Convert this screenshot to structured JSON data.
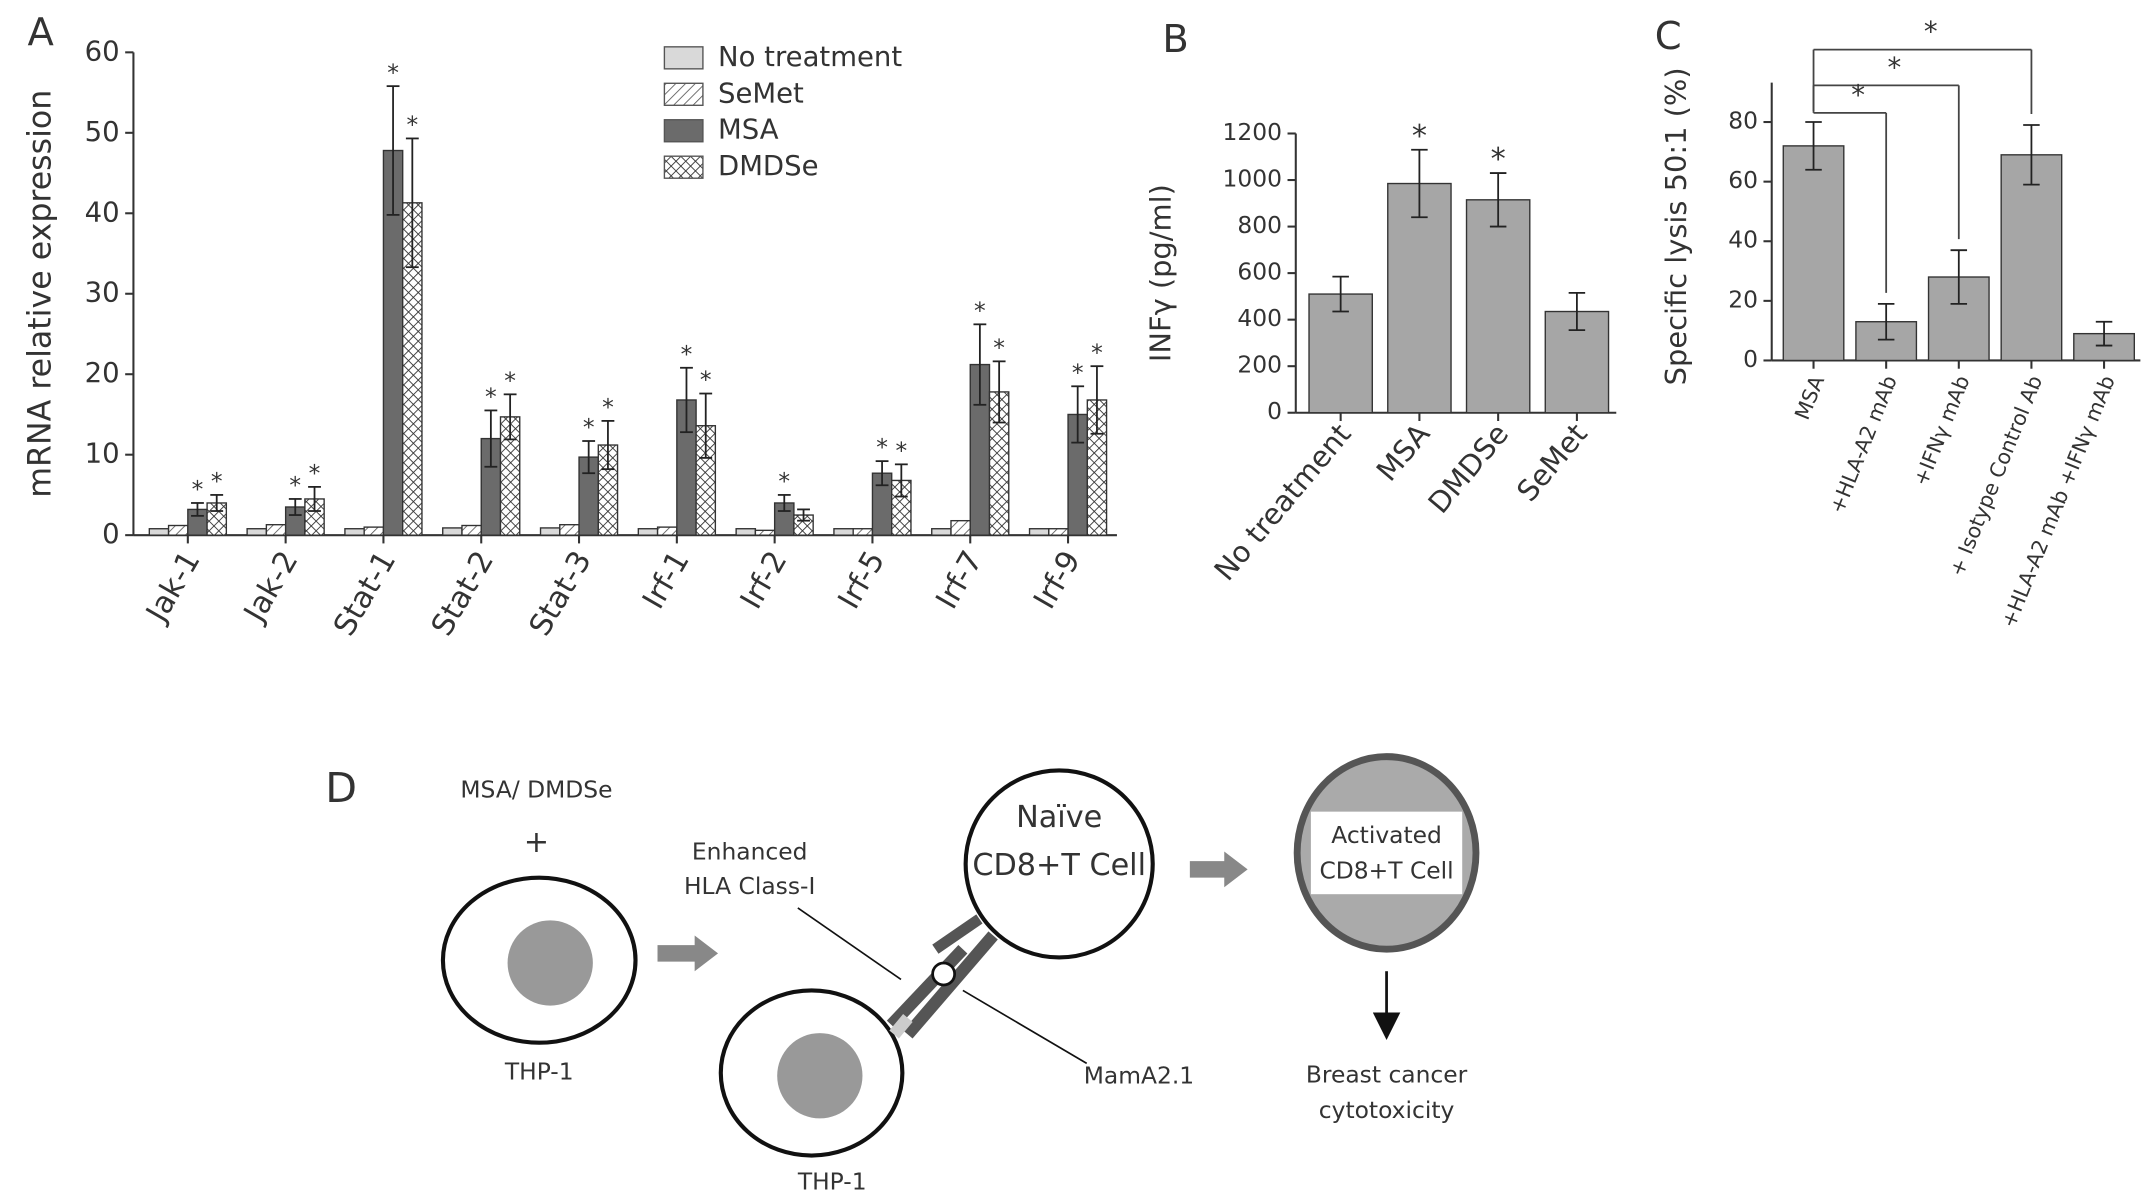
{
  "chart_data": [
    {
      "type": "bar",
      "panel": "A",
      "ylabel": "mRNA relative expression",
      "categories": [
        "Jak-1",
        "Jak-2",
        "Stat-1",
        "Stat-2",
        "Stat-3",
        "Irf-1",
        "Irf-2",
        "Irf-5",
        "Irf-7",
        "Irf-9"
      ],
      "series": [
        {
          "name": "No treatment",
          "color": "#d9d9d9",
          "pattern": "solid",
          "values": [
            0.8,
            0.8,
            0.8,
            0.9,
            0.9,
            0.8,
            0.8,
            0.8,
            0.8,
            0.8
          ]
        },
        {
          "name": "SeMet",
          "color": "#ffffff",
          "pattern": "diagonal",
          "values": [
            1.2,
            1.3,
            1.0,
            1.2,
            1.3,
            1.0,
            0.6,
            0.8,
            1.8,
            0.8
          ]
        },
        {
          "name": "MSA",
          "color": "#6b6b6b",
          "pattern": "solid",
          "values": [
            3.2,
            3.5,
            47.8,
            12,
            9.7,
            16.8,
            4,
            7.7,
            21.2,
            15
          ],
          "errors": [
            0.8,
            1,
            8,
            3.5,
            2,
            4,
            1,
            1.5,
            5,
            3.5
          ],
          "annotations": [
            "*",
            "*",
            "*",
            "*",
            "*",
            "*",
            "*",
            "*",
            "*",
            "*"
          ]
        },
        {
          "name": "DMDSe",
          "color": "#ffffff",
          "pattern": "cross",
          "values": [
            4,
            4.5,
            41.3,
            14.7,
            11.2,
            13.6,
            2.5,
            6.8,
            17.8,
            16.8
          ],
          "errors": [
            1,
            1.5,
            8,
            2.8,
            3,
            4,
            0.7,
            2,
            3.8,
            4.2
          ],
          "annotations": [
            "*",
            "*",
            "*",
            "*",
            "*",
            "*",
            null,
            "*",
            "*",
            "*"
          ]
        }
      ],
      "ylim": [
        0,
        60
      ],
      "yticks": [
        0,
        10,
        20,
        30,
        40,
        50,
        60
      ],
      "legend": "upper right"
    },
    {
      "type": "bar",
      "panel": "B",
      "ylabel": "INFγ (pg/ml)",
      "categories": [
        "No treatment",
        "MSA",
        "DMDSe",
        "SeMet"
      ],
      "values": [
        510,
        985,
        915,
        435
      ],
      "errors": [
        75,
        145,
        115,
        80
      ],
      "annotations": [
        null,
        "*",
        "*",
        null
      ],
      "color": "#a6a6a6",
      "ylim": [
        0,
        1200
      ],
      "yticks": [
        0,
        200,
        400,
        600,
        800,
        1000,
        1200
      ]
    },
    {
      "type": "bar",
      "panel": "C",
      "ylabel": "Specific lysis 50:1 (%)",
      "categories": [
        "MSA",
        "+HLA-A2 mAb",
        "+IFNγ mAb",
        "+ Isotype Control Ab",
        "+HLA-A2 mAb +IFNγ mAb"
      ],
      "values": [
        72,
        13,
        28,
        69,
        9
      ],
      "errors": [
        8,
        6,
        9,
        10,
        4
      ],
      "color": "#a6a6a6",
      "ylim": [
        0,
        90
      ],
      "yticks": [
        0,
        20,
        40,
        60,
        80
      ],
      "comparisons": [
        {
          "from": 0,
          "to": 3,
          "label": "*"
        },
        {
          "from": 0,
          "to": 2,
          "label": "*"
        },
        {
          "from": 0,
          "to": 1,
          "label": "*"
        }
      ]
    }
  ],
  "diagram": {
    "label": "D",
    "treatment": "MSA/ DMDSe",
    "plus": "+",
    "cell1": "THP-1",
    "hla": [
      "Enhanced",
      "HLA Class-I"
    ],
    "naive": [
      "Naïve",
      "CD8+T Cell"
    ],
    "mam": "MamA2.1",
    "cell2": "THP-1",
    "activated": [
      "Activated",
      "CD8+T Cell"
    ],
    "outcome": [
      "Breast cancer",
      "cytotoxicity"
    ]
  }
}
